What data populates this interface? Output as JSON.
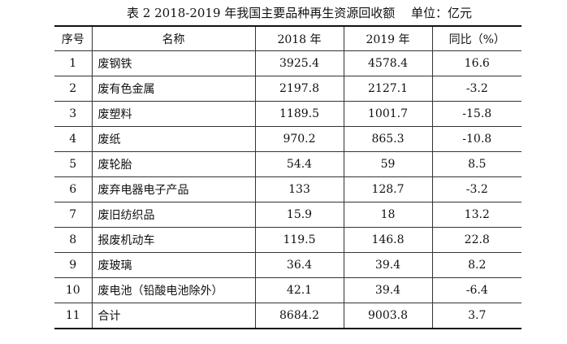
{
  "caption": {
    "title": "表 2  2018-2019 年我国主要品种再生资源回收额",
    "unit": "单位：亿元"
  },
  "table": {
    "headers": [
      "序号",
      "名称",
      "2018 年",
      "2019 年",
      "同比（%）"
    ],
    "rows": [
      [
        "1",
        "废钢铁",
        "3925.4",
        "4578.4",
        "16.6"
      ],
      [
        "2",
        "废有色金属",
        "2197.8",
        "2127.1",
        "-3.2"
      ],
      [
        "3",
        "废塑料",
        "1189.5",
        "1001.7",
        "-15.8"
      ],
      [
        "4",
        "废纸",
        "970.2",
        "865.3",
        "-10.8"
      ],
      [
        "5",
        "废轮胎",
        "54.4",
        "59",
        "8.5"
      ],
      [
        "6",
        "废弃电器电子产品",
        "133",
        "128.7",
        "-3.2"
      ],
      [
        "7",
        "废旧纺织品",
        "15.9",
        "18",
        "13.2"
      ],
      [
        "8",
        "报废机动车",
        "119.5",
        "146.8",
        "22.8"
      ],
      [
        "9",
        "废玻璃",
        "36.4",
        "39.4",
        "8.2"
      ],
      [
        "10",
        "废电池（铅酸电池除外）",
        "42.1",
        "39.4",
        "-6.4"
      ],
      [
        "11",
        "合计",
        "8684.2",
        "9003.8",
        "3.7"
      ]
    ]
  }
}
